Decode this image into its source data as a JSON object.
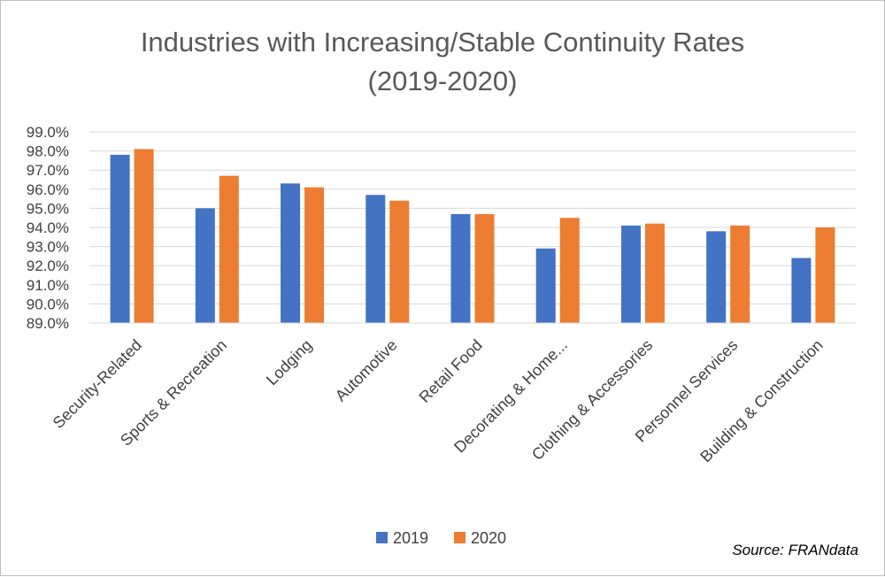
{
  "chart_data": {
    "type": "bar",
    "title": "Industries with Increasing/Stable Continuity Rates",
    "subtitle": "(2019-2020)",
    "xlabel": "",
    "ylabel": "",
    "categories": [
      "Security-Related",
      "Sports & Recreation",
      "Lodging",
      "Automotive",
      "Retail Food",
      "Decorating & Home...",
      "Clothing & Accessories",
      "Personnel Services",
      "Building & Construction"
    ],
    "series": [
      {
        "name": "2019",
        "color": "#4472c4",
        "values": [
          97.8,
          95.0,
          96.3,
          95.7,
          94.7,
          92.9,
          94.1,
          93.8,
          92.4
        ]
      },
      {
        "name": "2020",
        "color": "#ed7d31",
        "values": [
          98.1,
          96.7,
          96.1,
          95.4,
          94.7,
          94.5,
          94.2,
          94.1,
          94.0
        ]
      }
    ],
    "ylim": [
      89.0,
      99.0
    ],
    "yticks": [
      "99.0%",
      "98.0%",
      "97.0%",
      "96.0%",
      "95.0%",
      "94.0%",
      "93.0%",
      "92.0%",
      "91.0%",
      "90.0%",
      "89.0%"
    ],
    "grid": true,
    "legend_position": "bottom",
    "source": "Source: FRANdata"
  }
}
